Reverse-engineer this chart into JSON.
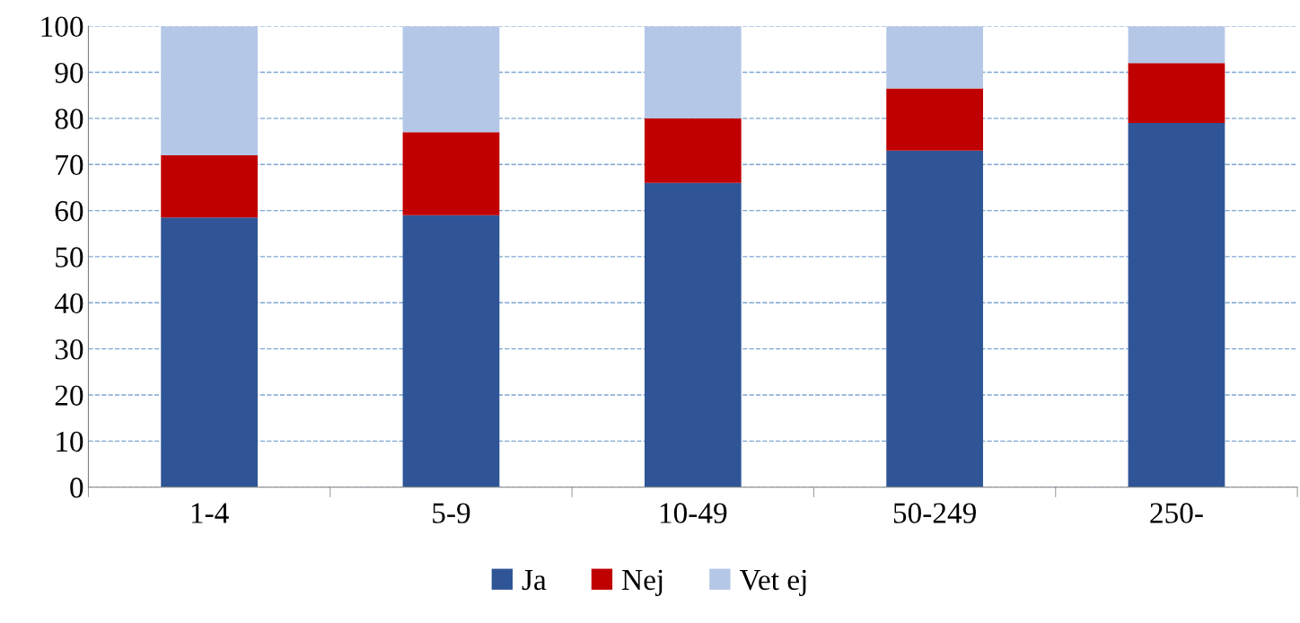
{
  "chart_data": {
    "type": "bar",
    "stacked": true,
    "categories": [
      "1-4",
      "5-9",
      "10-49",
      "50-249",
      "250-"
    ],
    "series": [
      {
        "name": "Ja",
        "color": "#2f5597",
        "values": [
          58.5,
          59,
          66,
          73,
          79
        ]
      },
      {
        "name": "Nej",
        "color": "#c00000",
        "values": [
          13.5,
          18,
          14,
          13.5,
          13
        ]
      },
      {
        "name": "Vet ej",
        "color": "#b4c7e7",
        "values": [
          28,
          23,
          20,
          13.5,
          8
        ]
      }
    ],
    "ylim": [
      0,
      100
    ],
    "yticks": [
      0,
      10,
      20,
      30,
      40,
      50,
      60,
      70,
      80,
      90,
      100
    ],
    "grid": "y",
    "legend": "bottom"
  }
}
